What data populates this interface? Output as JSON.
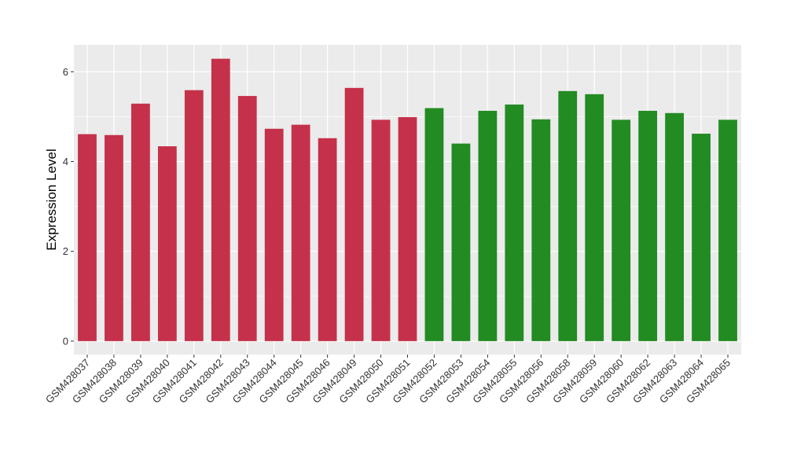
{
  "chart_data": {
    "type": "bar",
    "title": "",
    "xlabel": "",
    "ylabel": "Expression Level",
    "ylim": [
      -0.3,
      6.6
    ],
    "yticks": [
      0,
      2,
      4,
      6
    ],
    "grid": true,
    "background": "#EBEBEB",
    "categories": [
      "GSM428037",
      "GSM428038",
      "GSM428039",
      "GSM428040",
      "GSM428041",
      "GSM428042",
      "GSM428043",
      "GSM428044",
      "GSM428045",
      "GSM428046",
      "GSM428049",
      "GSM428050",
      "GSM428051",
      "GSM428052",
      "GSM428053",
      "GSM428054",
      "GSM428055",
      "GSM428056",
      "GSM428058",
      "GSM428059",
      "GSM428060",
      "GSM428062",
      "GSM428063",
      "GSM428064",
      "GSM428065"
    ],
    "values": [
      4.61,
      4.59,
      5.29,
      4.34,
      5.59,
      6.29,
      5.46,
      4.73,
      4.82,
      4.52,
      5.64,
      4.93,
      4.99,
      5.19,
      4.4,
      5.13,
      5.27,
      4.94,
      5.57,
      5.5,
      4.93,
      5.13,
      5.08,
      4.62,
      4.93
    ],
    "colors": [
      "#C5314A",
      "#C5314A",
      "#C5314A",
      "#C5314A",
      "#C5314A",
      "#C5314A",
      "#C5314A",
      "#C5314A",
      "#C5314A",
      "#C5314A",
      "#C5314A",
      "#C5314A",
      "#C5314A",
      "#228B22",
      "#228B22",
      "#228B22",
      "#228B22",
      "#228B22",
      "#228B22",
      "#228B22",
      "#228B22",
      "#228B22",
      "#228B22",
      "#228B22",
      "#228B22"
    ]
  }
}
